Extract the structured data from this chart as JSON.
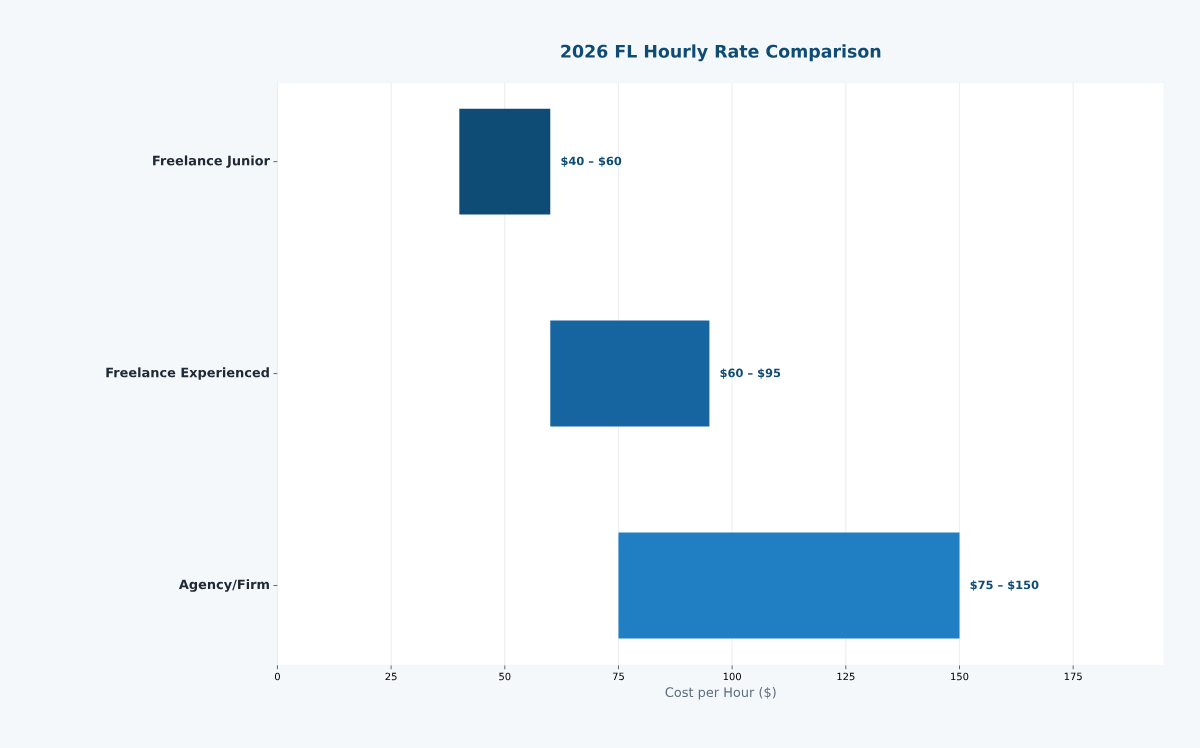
{
  "chart_data": {
    "type": "bar",
    "orientation": "horizontal",
    "title": "2026 FL Hourly Rate Comparison",
    "xlabel": "Cost per Hour ($)",
    "categories": [
      "Freelance Junior",
      "Freelance Experienced",
      "Agency/Firm"
    ],
    "base": [
      40,
      60,
      75
    ],
    "values": [
      20,
      35,
      75
    ],
    "annotations": [
      {
        "text": "$40 – $60",
        "x": 60,
        "y": "Freelance Junior"
      },
      {
        "text": "$60 – $95",
        "x": 95,
        "y": "Freelance Experienced"
      },
      {
        "text": "$75 – $150",
        "x": 150,
        "y": "Agency/Firm"
      }
    ],
    "colors": [
      "#0f4c75",
      "#1665a0",
      "#1f7fc2"
    ],
    "xlim": [
      0,
      195
    ],
    "xticks": [
      0,
      25,
      50,
      75,
      100,
      125,
      150,
      175
    ],
    "grid": "x"
  }
}
